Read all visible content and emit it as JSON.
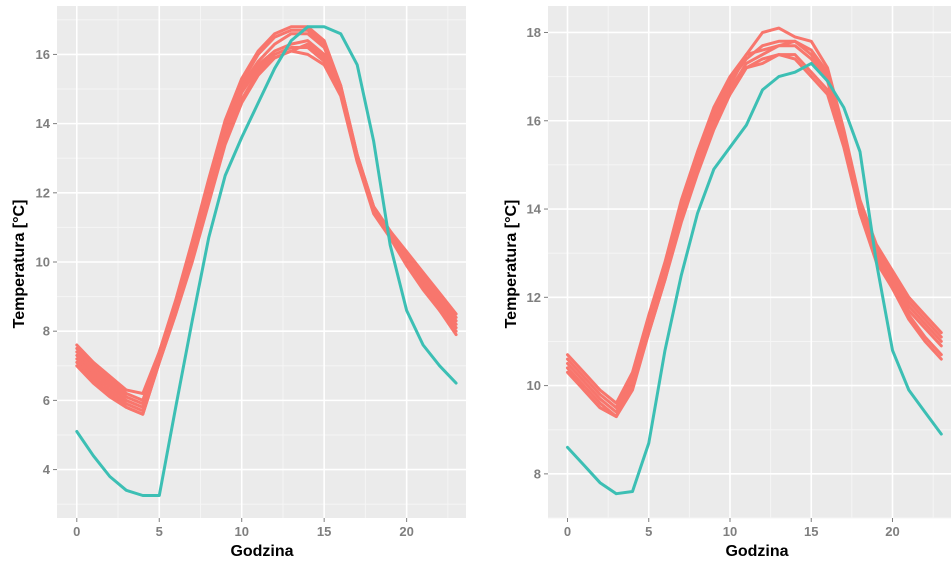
{
  "colors": {
    "panel_bg": "#EBEBEB",
    "grid_major": "#FFFFFF",
    "grid_minor": "#F5F5F5",
    "series_red": "#F8766D",
    "series_teal": "#3CBFB4",
    "tick_text": "#7F7F7F"
  },
  "chart_data": [
    {
      "type": "line",
      "xlabel": "Godzina",
      "ylabel": "Temperatura [°C]",
      "xlim": [
        -1.2,
        23.6
      ],
      "ylim": [
        2.6,
        17.4
      ],
      "xticks": [
        0,
        5,
        10,
        15,
        20
      ],
      "xtick_labels": [
        "0",
        "5",
        "10",
        "15",
        "20"
      ],
      "yticks": [
        4,
        6,
        8,
        10,
        12,
        14,
        16
      ],
      "ytick_labels": [
        "4",
        "6",
        "8",
        "10",
        "12",
        "14",
        "16"
      ],
      "grid": true,
      "x": [
        0,
        1,
        2,
        3,
        4,
        5,
        6,
        7,
        8,
        9,
        10,
        11,
        12,
        13,
        14,
        15,
        16,
        17,
        18,
        19,
        20,
        21,
        22,
        23
      ],
      "series": [
        {
          "color": "#F8766D",
          "values": [
            7.6,
            7.1,
            6.7,
            6.3,
            6.2,
            7.4,
            8.9,
            10.6,
            12.4,
            14.1,
            15.3,
            16.1,
            16.6,
            16.8,
            16.8,
            16.4,
            15.1,
            13.1,
            11.6,
            10.9,
            10.3,
            9.7,
            9.1,
            8.5
          ]
        },
        {
          "color": "#F8766D",
          "values": [
            7.5,
            7.0,
            6.6,
            6.2,
            6.0,
            7.4,
            8.8,
            10.5,
            12.3,
            14.0,
            15.2,
            16.0,
            16.5,
            16.7,
            16.7,
            16.3,
            15.1,
            13.1,
            11.6,
            10.9,
            10.2,
            9.6,
            9.0,
            8.4
          ]
        },
        {
          "color": "#F8766D",
          "values": [
            7.4,
            6.9,
            6.5,
            6.1,
            5.9,
            7.3,
            8.7,
            10.4,
            12.2,
            13.9,
            15.1,
            15.8,
            16.3,
            16.6,
            16.6,
            16.2,
            15.0,
            13.0,
            11.6,
            10.8,
            10.1,
            9.5,
            8.9,
            8.3
          ]
        },
        {
          "color": "#F8766D",
          "values": [
            7.3,
            6.8,
            6.4,
            6.0,
            5.8,
            7.2,
            8.6,
            10.3,
            12.0,
            13.8,
            15.0,
            15.7,
            16.1,
            16.3,
            16.4,
            16.0,
            14.9,
            13.0,
            11.5,
            10.8,
            10.1,
            9.4,
            8.8,
            8.2
          ]
        },
        {
          "color": "#F8766D",
          "values": [
            7.2,
            6.7,
            6.3,
            5.9,
            5.7,
            7.2,
            8.6,
            10.2,
            11.9,
            13.6,
            14.9,
            15.6,
            16.0,
            16.2,
            16.2,
            15.8,
            14.9,
            12.9,
            11.5,
            10.7,
            10.0,
            9.3,
            8.7,
            8.1
          ]
        },
        {
          "color": "#F8766D",
          "values": [
            7.1,
            6.6,
            6.2,
            5.8,
            5.6,
            7.1,
            8.5,
            10.1,
            11.8,
            13.5,
            14.7,
            15.5,
            15.9,
            16.1,
            16.0,
            15.7,
            14.8,
            12.9,
            11.4,
            10.7,
            9.9,
            9.2,
            8.6,
            8.0
          ]
        },
        {
          "color": "#F8766D",
          "values": [
            7.0,
            6.5,
            6.1,
            5.8,
            5.6,
            7.1,
            8.5,
            10.0,
            11.7,
            13.4,
            14.6,
            15.4,
            15.9,
            16.1,
            16.3,
            15.9,
            15.0,
            13.0,
            11.5,
            10.8,
            10.0,
            9.3,
            8.6,
            7.9
          ]
        },
        {
          "color": "#3CBFB4",
          "values": [
            5.1,
            4.4,
            3.8,
            3.4,
            3.25,
            3.25,
            5.8,
            8.3,
            10.7,
            12.5,
            13.6,
            14.6,
            15.6,
            16.4,
            16.8,
            16.8,
            16.6,
            15.7,
            13.5,
            10.5,
            8.6,
            7.6,
            7.0,
            6.5
          ]
        }
      ]
    },
    {
      "type": "line",
      "xlabel": "Godzina",
      "ylabel": "Temperatura [°C]",
      "xlim": [
        -1.2,
        23.6
      ],
      "ylim": [
        7.0,
        18.6
      ],
      "xticks": [
        0,
        5,
        10,
        15,
        20
      ],
      "xtick_labels": [
        "0",
        "5",
        "10",
        "15",
        "20"
      ],
      "yticks": [
        8,
        10,
        12,
        14,
        16,
        18
      ],
      "ytick_labels": [
        "8",
        "10",
        "12",
        "14",
        "16",
        "18"
      ],
      "grid": true,
      "x": [
        0,
        1,
        2,
        3,
        4,
        5,
        6,
        7,
        8,
        9,
        10,
        11,
        12,
        13,
        14,
        15,
        16,
        17,
        18,
        19,
        20,
        21,
        22,
        23
      ],
      "series": [
        {
          "color": "#F8766D",
          "values": [
            10.7,
            10.3,
            9.9,
            9.6,
            10.3,
            11.6,
            12.8,
            14.2,
            15.3,
            16.3,
            17.0,
            17.5,
            18.0,
            18.1,
            17.9,
            17.8,
            17.2,
            15.8,
            14.2,
            13.2,
            12.6,
            12.0,
            11.6,
            11.2
          ]
        },
        {
          "color": "#F8766D",
          "values": [
            10.6,
            10.2,
            9.8,
            9.5,
            10.2,
            11.5,
            12.7,
            14.1,
            15.2,
            16.2,
            16.9,
            17.4,
            17.7,
            17.8,
            17.8,
            17.6,
            17.1,
            15.7,
            14.1,
            13.1,
            12.5,
            11.9,
            11.5,
            11.1
          ]
        },
        {
          "color": "#F8766D",
          "values": [
            10.5,
            10.1,
            9.7,
            9.4,
            10.1,
            11.4,
            12.6,
            14.0,
            15.1,
            16.1,
            16.8,
            17.5,
            17.6,
            17.7,
            17.8,
            17.5,
            17.0,
            15.6,
            14.0,
            13.0,
            12.4,
            11.8,
            11.4,
            11.0
          ]
        },
        {
          "color": "#F8766D",
          "values": [
            10.4,
            10.0,
            9.6,
            9.3,
            10.0,
            11.3,
            12.5,
            13.9,
            15.0,
            16.0,
            16.7,
            17.3,
            17.5,
            17.7,
            17.7,
            17.4,
            16.9,
            15.6,
            14.0,
            12.9,
            12.3,
            11.7,
            11.3,
            10.9
          ]
        },
        {
          "color": "#F8766D",
          "values": [
            10.4,
            9.9,
            9.5,
            9.3,
            10.0,
            11.2,
            12.4,
            13.8,
            14.9,
            15.9,
            16.6,
            17.2,
            17.4,
            17.5,
            17.5,
            17.1,
            16.7,
            15.5,
            13.9,
            12.9,
            12.2,
            11.6,
            11.1,
            10.7
          ]
        },
        {
          "color": "#F8766D",
          "values": [
            10.3,
            9.9,
            9.5,
            9.3,
            9.9,
            11.2,
            12.4,
            13.7,
            14.8,
            15.8,
            16.6,
            17.2,
            17.3,
            17.5,
            17.4,
            17.0,
            16.6,
            15.4,
            13.9,
            12.8,
            12.2,
            11.5,
            11.0,
            10.6
          ]
        },
        {
          "color": "#3CBFB4",
          "values": [
            8.6,
            8.2,
            7.8,
            7.55,
            7.6,
            8.7,
            10.8,
            12.5,
            13.9,
            14.9,
            15.4,
            15.9,
            16.7,
            17.0,
            17.1,
            17.3,
            16.9,
            16.3,
            15.3,
            12.8,
            10.8,
            9.9,
            9.4,
            8.9
          ]
        }
      ]
    }
  ]
}
